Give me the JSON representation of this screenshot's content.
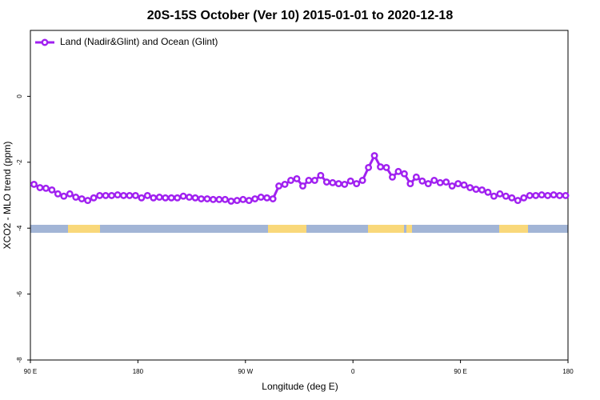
{
  "chart_data": {
    "type": "line",
    "title": "20S-15S October (Ver 10)   2015-01-01 to 2020-12-18",
    "x_label": "Longitude (deg E)",
    "y_label": "XCO2 - MLO trend (ppm)",
    "xlim": [
      90,
      540
    ],
    "xticks": [
      {
        "value": 90,
        "label": "90 E"
      },
      {
        "value": 180,
        "label": "180"
      },
      {
        "value": 270,
        "label": "90 W"
      },
      {
        "value": 360,
        "label": "0"
      },
      {
        "value": 450,
        "label": "90 E"
      },
      {
        "value": 540,
        "label": "180"
      }
    ],
    "ylim": [
      -8,
      2
    ],
    "yticks": [
      -8,
      -6,
      -4,
      -2,
      0
    ],
    "legend": "top-left",
    "x": [
      93,
      98,
      103,
      108,
      113,
      118,
      123,
      128,
      133,
      138,
      143,
      148,
      153,
      158,
      163,
      168,
      173,
      178,
      183,
      188,
      193,
      198,
      203,
      208,
      213,
      218,
      223,
      228,
      233,
      238,
      243,
      248,
      253,
      258,
      263,
      268,
      273,
      278,
      283,
      288,
      293,
      298,
      303,
      308,
      313,
      318,
      323,
      328,
      333,
      338,
      343,
      348,
      353,
      358,
      363,
      368,
      373,
      378,
      383,
      388,
      393,
      398,
      403,
      408,
      413,
      418,
      423,
      428,
      433,
      438,
      443,
      448,
      453,
      458,
      463,
      468,
      473,
      478,
      483,
      488,
      493,
      498,
      503,
      508,
      513,
      518,
      523,
      528,
      533,
      538
    ],
    "series": [
      {
        "name": "Land (Nadir&Glint) and Ocean (Glint)",
        "color": "#a020f0",
        "values": [
          -2.67,
          -2.77,
          -2.79,
          -2.84,
          -2.96,
          -3.03,
          -2.96,
          -3.06,
          -3.11,
          -3.16,
          -3.08,
          -3.01,
          -3.01,
          -3.01,
          -2.99,
          -3.01,
          -3.01,
          -3.01,
          -3.08,
          -3.01,
          -3.08,
          -3.06,
          -3.08,
          -3.08,
          -3.08,
          -3.03,
          -3.06,
          -3.08,
          -3.11,
          -3.11,
          -3.13,
          -3.13,
          -3.13,
          -3.18,
          -3.16,
          -3.13,
          -3.16,
          -3.11,
          -3.06,
          -3.08,
          -3.11,
          -2.72,
          -2.67,
          -2.55,
          -2.5,
          -2.72,
          -2.55,
          -2.55,
          -2.4,
          -2.6,
          -2.62,
          -2.65,
          -2.67,
          -2.57,
          -2.65,
          -2.55,
          -2.16,
          -1.8,
          -2.14,
          -2.16,
          -2.45,
          -2.28,
          -2.35,
          -2.65,
          -2.45,
          -2.57,
          -2.65,
          -2.55,
          -2.62,
          -2.6,
          -2.72,
          -2.65,
          -2.69,
          -2.77,
          -2.82,
          -2.84,
          -2.91,
          -3.03,
          -2.96,
          -3.03,
          -3.08,
          -3.16,
          -3.08,
          -3.01,
          -3.01,
          -2.99,
          -3.01,
          -2.99,
          -3.01,
          -3.01
        ]
      }
    ]
  }
}
